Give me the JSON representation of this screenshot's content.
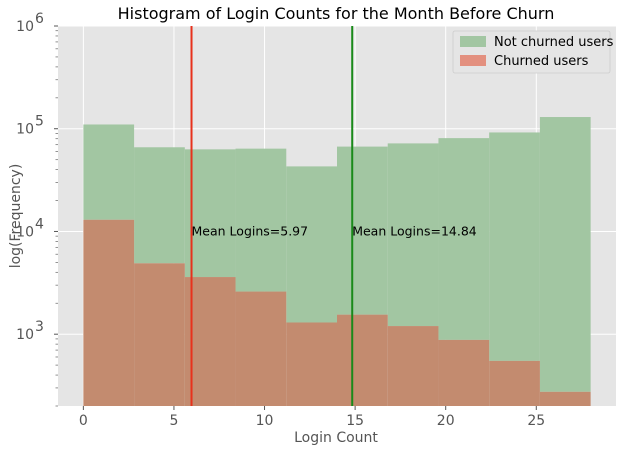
{
  "chart_data": {
    "type": "histogram",
    "title": "Histogram of Login Counts for the Month Before Churn",
    "xlabel": "Login Count",
    "ylabel": "log(Frequency)",
    "xlim": [
      -1.4,
      29.4
    ],
    "ylim": [
      200,
      1000000
    ],
    "yscale": "log",
    "xticks": [
      0,
      5,
      10,
      15,
      20,
      25
    ],
    "yticks": [
      {
        "value": 1000,
        "base": "10",
        "exp": "3"
      },
      {
        "value": 10000,
        "base": "10",
        "exp": "4"
      },
      {
        "value": 100000,
        "base": "10",
        "exp": "5"
      },
      {
        "value": 1000000,
        "base": "10",
        "exp": "6"
      }
    ],
    "grid": true,
    "legend_position": "top-right",
    "bin_edges": [
      0,
      2.8,
      5.6,
      8.4,
      11.2,
      14,
      16.8,
      19.6,
      22.4,
      25.2,
      28
    ],
    "series": [
      {
        "name": "Not churned users",
        "color": "#a2c6a2",
        "values": [
          110000,
          66000,
          63000,
          64000,
          43000,
          67000,
          72000,
          81000,
          92000,
          130000
        ]
      },
      {
        "name": "Churned users",
        "color": "#e3907f",
        "values": [
          13000,
          4900,
          3600,
          2600,
          1300,
          1550,
          1200,
          880,
          550,
          275
        ]
      }
    ],
    "overlap_color": "#c38b6f",
    "vlines": [
      {
        "x": 5.97,
        "color": "#e8311c",
        "label": "Mean Logins=5.97"
      },
      {
        "x": 14.84,
        "color": "#1a8a1a",
        "label": "Mean Logins=14.84"
      }
    ],
    "annotation_y": 10000
  }
}
